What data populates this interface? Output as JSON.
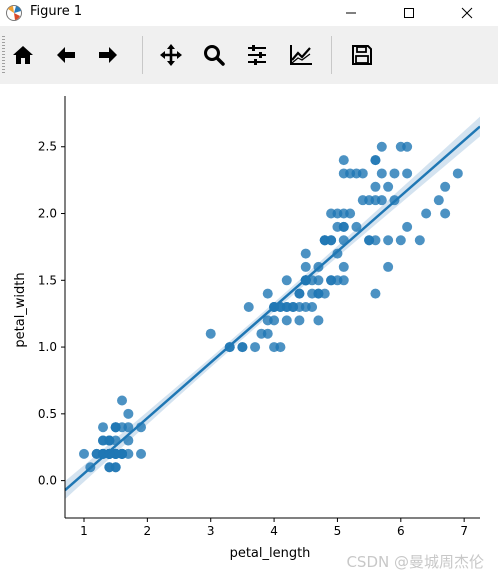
{
  "window": {
    "title": "Figure 1"
  },
  "toolbar": {
    "buttons": [
      {
        "name": "home-icon"
      },
      {
        "name": "back-arrow-icon"
      },
      {
        "name": "forward-arrow-icon"
      },
      {
        "name": "pan-icon"
      },
      {
        "name": "zoom-icon"
      },
      {
        "name": "subplots-config-icon"
      },
      {
        "name": "edit-axes-icon"
      },
      {
        "name": "save-icon"
      }
    ]
  },
  "watermark": "CSDN @曼城周杰伦",
  "colors": {
    "points": "#1f77b4",
    "band": "#c9dcec",
    "background": "#ffffff"
  },
  "chart_data": {
    "type": "scatter",
    "xlabel": "petal_length",
    "ylabel": "petal_width",
    "xlim": [
      0.7,
      7.25
    ],
    "ylim": [
      -0.28,
      2.88
    ],
    "xticks": [
      "1",
      "2",
      "3",
      "4",
      "5",
      "6",
      "7"
    ],
    "yticks": [
      "0.0",
      "0.5",
      "1.0",
      "1.5",
      "2.0",
      "2.5"
    ],
    "grid": false,
    "regression": {
      "slope": 0.4158,
      "intercept": -0.363,
      "ci": true
    },
    "points": [
      [
        1.4,
        0.2
      ],
      [
        1.4,
        0.2
      ],
      [
        1.3,
        0.2
      ],
      [
        1.5,
        0.2
      ],
      [
        1.4,
        0.2
      ],
      [
        1.7,
        0.4
      ],
      [
        1.4,
        0.3
      ],
      [
        1.5,
        0.2
      ],
      [
        1.4,
        0.2
      ],
      [
        1.5,
        0.1
      ],
      [
        1.5,
        0.2
      ],
      [
        1.6,
        0.2
      ],
      [
        1.4,
        0.1
      ],
      [
        1.1,
        0.1
      ],
      [
        1.2,
        0.2
      ],
      [
        1.5,
        0.4
      ],
      [
        1.3,
        0.4
      ],
      [
        1.4,
        0.3
      ],
      [
        1.7,
        0.3
      ],
      [
        1.5,
        0.3
      ],
      [
        1.7,
        0.2
      ],
      [
        1.5,
        0.4
      ],
      [
        1.0,
        0.2
      ],
      [
        1.7,
        0.5
      ],
      [
        1.9,
        0.2
      ],
      [
        1.6,
        0.2
      ],
      [
        1.6,
        0.4
      ],
      [
        1.5,
        0.2
      ],
      [
        1.4,
        0.2
      ],
      [
        1.6,
        0.2
      ],
      [
        1.6,
        0.2
      ],
      [
        1.5,
        0.4
      ],
      [
        1.5,
        0.1
      ],
      [
        1.4,
        0.2
      ],
      [
        1.5,
        0.2
      ],
      [
        1.2,
        0.2
      ],
      [
        1.3,
        0.2
      ],
      [
        1.4,
        0.1
      ],
      [
        1.3,
        0.2
      ],
      [
        1.5,
        0.2
      ],
      [
        1.3,
        0.3
      ],
      [
        1.3,
        0.3
      ],
      [
        1.3,
        0.2
      ],
      [
        1.6,
        0.6
      ],
      [
        1.9,
        0.4
      ],
      [
        1.4,
        0.3
      ],
      [
        1.6,
        0.2
      ],
      [
        1.4,
        0.2
      ],
      [
        1.5,
        0.2
      ],
      [
        1.4,
        0.2
      ],
      [
        4.7,
        1.4
      ],
      [
        4.5,
        1.5
      ],
      [
        4.9,
        1.5
      ],
      [
        4.0,
        1.3
      ],
      [
        4.6,
        1.5
      ],
      [
        4.5,
        1.3
      ],
      [
        4.7,
        1.6
      ],
      [
        3.3,
        1.0
      ],
      [
        4.6,
        1.3
      ],
      [
        3.9,
        1.4
      ],
      [
        3.5,
        1.0
      ],
      [
        4.2,
        1.5
      ],
      [
        4.0,
        1.0
      ],
      [
        4.7,
        1.4
      ],
      [
        3.6,
        1.3
      ],
      [
        4.4,
        1.4
      ],
      [
        4.5,
        1.5
      ],
      [
        4.1,
        1.0
      ],
      [
        4.5,
        1.5
      ],
      [
        3.9,
        1.1
      ],
      [
        4.8,
        1.8
      ],
      [
        4.0,
        1.3
      ],
      [
        4.9,
        1.5
      ],
      [
        4.7,
        1.2
      ],
      [
        4.3,
        1.3
      ],
      [
        4.4,
        1.4
      ],
      [
        4.8,
        1.4
      ],
      [
        5.0,
        1.7
      ],
      [
        4.5,
        1.5
      ],
      [
        3.5,
        1.0
      ],
      [
        3.8,
        1.1
      ],
      [
        3.7,
        1.0
      ],
      [
        3.9,
        1.2
      ],
      [
        5.1,
        1.6
      ],
      [
        4.5,
        1.5
      ],
      [
        4.5,
        1.6
      ],
      [
        4.7,
        1.5
      ],
      [
        4.4,
        1.3
      ],
      [
        4.1,
        1.3
      ],
      [
        4.0,
        1.3
      ],
      [
        4.4,
        1.2
      ],
      [
        4.6,
        1.4
      ],
      [
        4.0,
        1.2
      ],
      [
        3.3,
        1.0
      ],
      [
        4.2,
        1.3
      ],
      [
        4.2,
        1.2
      ],
      [
        4.2,
        1.3
      ],
      [
        4.3,
        1.3
      ],
      [
        3.0,
        1.1
      ],
      [
        4.1,
        1.3
      ],
      [
        6.0,
        2.5
      ],
      [
        5.1,
        1.9
      ],
      [
        5.9,
        2.1
      ],
      [
        5.6,
        1.8
      ],
      [
        5.8,
        2.2
      ],
      [
        6.6,
        2.1
      ],
      [
        4.5,
        1.7
      ],
      [
        6.3,
        1.8
      ],
      [
        5.8,
        1.8
      ],
      [
        6.1,
        2.5
      ],
      [
        5.1,
        2.0
      ],
      [
        5.3,
        1.9
      ],
      [
        5.5,
        2.1
      ],
      [
        5.0,
        2.0
      ],
      [
        5.1,
        2.4
      ],
      [
        5.3,
        2.3
      ],
      [
        5.5,
        1.8
      ],
      [
        6.7,
        2.2
      ],
      [
        6.9,
        2.3
      ],
      [
        5.0,
        1.5
      ],
      [
        5.7,
        2.3
      ],
      [
        4.9,
        2.0
      ],
      [
        6.7,
        2.0
      ],
      [
        4.9,
        1.8
      ],
      [
        5.7,
        2.1
      ],
      [
        6.0,
        1.8
      ],
      [
        4.8,
        1.8
      ],
      [
        4.9,
        1.8
      ],
      [
        5.6,
        2.1
      ],
      [
        5.8,
        1.6
      ],
      [
        6.1,
        1.9
      ],
      [
        6.4,
        2.0
      ],
      [
        5.6,
        2.2
      ],
      [
        5.1,
        1.5
      ],
      [
        5.6,
        1.4
      ],
      [
        6.1,
        2.3
      ],
      [
        5.6,
        2.4
      ],
      [
        5.5,
        1.8
      ],
      [
        4.8,
        1.8
      ],
      [
        5.4,
        2.1
      ],
      [
        5.6,
        2.4
      ],
      [
        5.1,
        2.3
      ],
      [
        5.1,
        1.9
      ],
      [
        5.9,
        2.3
      ],
      [
        5.7,
        2.5
      ],
      [
        5.2,
        2.3
      ],
      [
        5.0,
        1.9
      ],
      [
        5.2,
        2.0
      ],
      [
        5.4,
        2.3
      ],
      [
        5.1,
        1.8
      ]
    ]
  }
}
